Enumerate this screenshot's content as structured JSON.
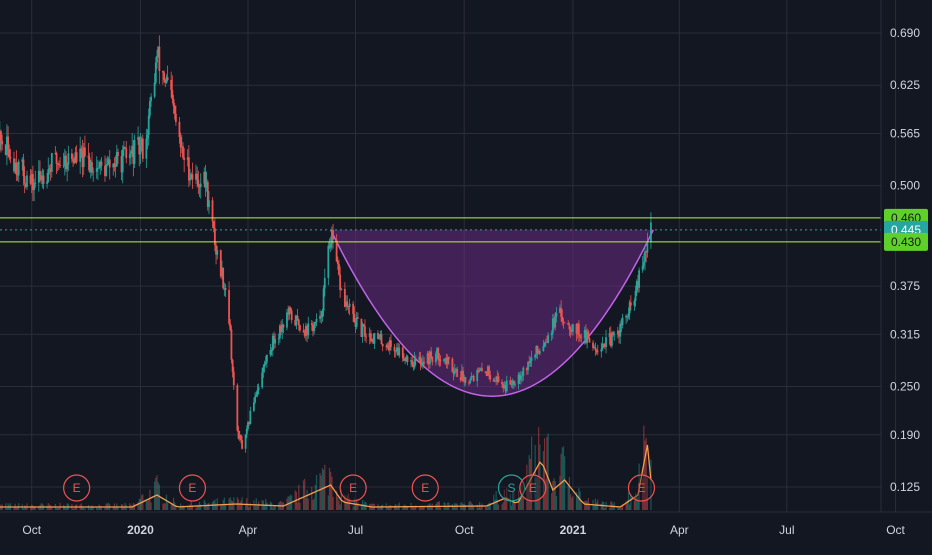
{
  "colors": {
    "background": "#131722",
    "grid": "#2a2e39",
    "axis_text": "#d1d4dc",
    "up_candle": "#26a69a",
    "down_candle": "#ef5350",
    "level_line": "#b6f542",
    "level_label_bg": "#5fd02a",
    "current_label_bg": "#26a6a0",
    "cup_fill": "#6a2c82",
    "cup_stroke": "#c163e6",
    "volume_line": "#f59d4e",
    "event_earnings": "#ef5350",
    "event_split": "#26a69a"
  },
  "chart_data": {
    "type": "candlestick",
    "y_axis": {
      "ticks": [
        "0.690",
        "0.625",
        "0.565",
        "0.500",
        "0.375",
        "0.315",
        "0.250",
        "0.190",
        "0.125"
      ],
      "range": [
        0.09,
        0.73
      ]
    },
    "x_axis": {
      "ticks": [
        "Oct",
        "2020",
        "Apr",
        "Jul",
        "Oct",
        "2021",
        "Apr",
        "Jul",
        "Oct"
      ],
      "start": "2019-08-25",
      "end": "2021-10-20"
    },
    "price_levels": [
      {
        "value": 0.46,
        "label": "0.460",
        "kind": "resistance"
      },
      {
        "value": 0.445,
        "label": "0.445",
        "kind": "current"
      },
      {
        "value": 0.43,
        "label": "0.430",
        "kind": "support"
      }
    ],
    "cup_pattern": {
      "start": "2020-06-10",
      "end": "2021-03-10",
      "rim": 0.445,
      "bottom": 0.238
    },
    "events": [
      {
        "type": "E",
        "date": "2019-11-08"
      },
      {
        "type": "E",
        "date": "2020-02-14"
      },
      {
        "type": "E",
        "date": "2020-06-29"
      },
      {
        "type": "E",
        "date": "2020-08-29"
      },
      {
        "type": "S",
        "date": "2020-11-10"
      },
      {
        "type": "E",
        "date": "2020-11-28"
      },
      {
        "type": "E",
        "date": "2021-02-28"
      }
    ],
    "close_anchors": [
      [
        "2019-08-25",
        0.575
      ],
      [
        "2019-09-10",
        0.545
      ],
      [
        "2019-10-01",
        0.5
      ],
      [
        "2019-10-20",
        0.53
      ],
      [
        "2019-11-10",
        0.535
      ],
      [
        "2019-12-01",
        0.52
      ],
      [
        "2019-12-20",
        0.535
      ],
      [
        "2020-01-05",
        0.55
      ],
      [
        "2020-01-15",
        0.66
      ],
      [
        "2020-01-25",
        0.62
      ],
      [
        "2020-02-05",
        0.54
      ],
      [
        "2020-02-15",
        0.51
      ],
      [
        "2020-02-25",
        0.505
      ],
      [
        "2020-03-05",
        0.42
      ],
      [
        "2020-03-15",
        0.36
      ],
      [
        "2020-03-22",
        0.2
      ],
      [
        "2020-03-28",
        0.17
      ],
      [
        "2020-04-05",
        0.23
      ],
      [
        "2020-04-20",
        0.3
      ],
      [
        "2020-05-05",
        0.34
      ],
      [
        "2020-05-20",
        0.32
      ],
      [
        "2020-06-01",
        0.33
      ],
      [
        "2020-06-10",
        0.44
      ],
      [
        "2020-06-20",
        0.36
      ],
      [
        "2020-07-05",
        0.32
      ],
      [
        "2020-08-01",
        0.3
      ],
      [
        "2020-08-20",
        0.28
      ],
      [
        "2020-09-10",
        0.29
      ],
      [
        "2020-10-01",
        0.26
      ],
      [
        "2020-10-20",
        0.27
      ],
      [
        "2020-11-05",
        0.25
      ],
      [
        "2020-11-20",
        0.27
      ],
      [
        "2020-12-05",
        0.3
      ],
      [
        "2020-12-20",
        0.34
      ],
      [
        "2021-01-05",
        0.32
      ],
      [
        "2021-01-20",
        0.3
      ],
      [
        "2021-02-05",
        0.31
      ],
      [
        "2021-02-20",
        0.35
      ],
      [
        "2021-03-01",
        0.4
      ],
      [
        "2021-03-08",
        0.445
      ]
    ],
    "volume_anchors": [
      [
        "2019-08-25",
        0.03
      ],
      [
        "2019-12-25",
        0.03
      ],
      [
        "2020-01-15",
        0.15
      ],
      [
        "2020-02-01",
        0.03
      ],
      [
        "2020-03-22",
        0.06
      ],
      [
        "2020-05-01",
        0.04
      ],
      [
        "2020-06-10",
        0.25
      ],
      [
        "2020-06-20",
        0.08
      ],
      [
        "2020-07-15",
        0.03
      ],
      [
        "2020-10-20",
        0.04
      ],
      [
        "2020-11-05",
        0.12
      ],
      [
        "2020-11-15",
        0.06
      ],
      [
        "2020-12-05",
        0.5
      ],
      [
        "2020-12-15",
        0.2
      ],
      [
        "2020-12-25",
        0.3
      ],
      [
        "2021-01-10",
        0.06
      ],
      [
        "2021-02-10",
        0.03
      ],
      [
        "2021-02-25",
        0.15
      ],
      [
        "2021-03-05",
        0.65
      ],
      [
        "2021-03-08",
        0.3
      ]
    ]
  }
}
